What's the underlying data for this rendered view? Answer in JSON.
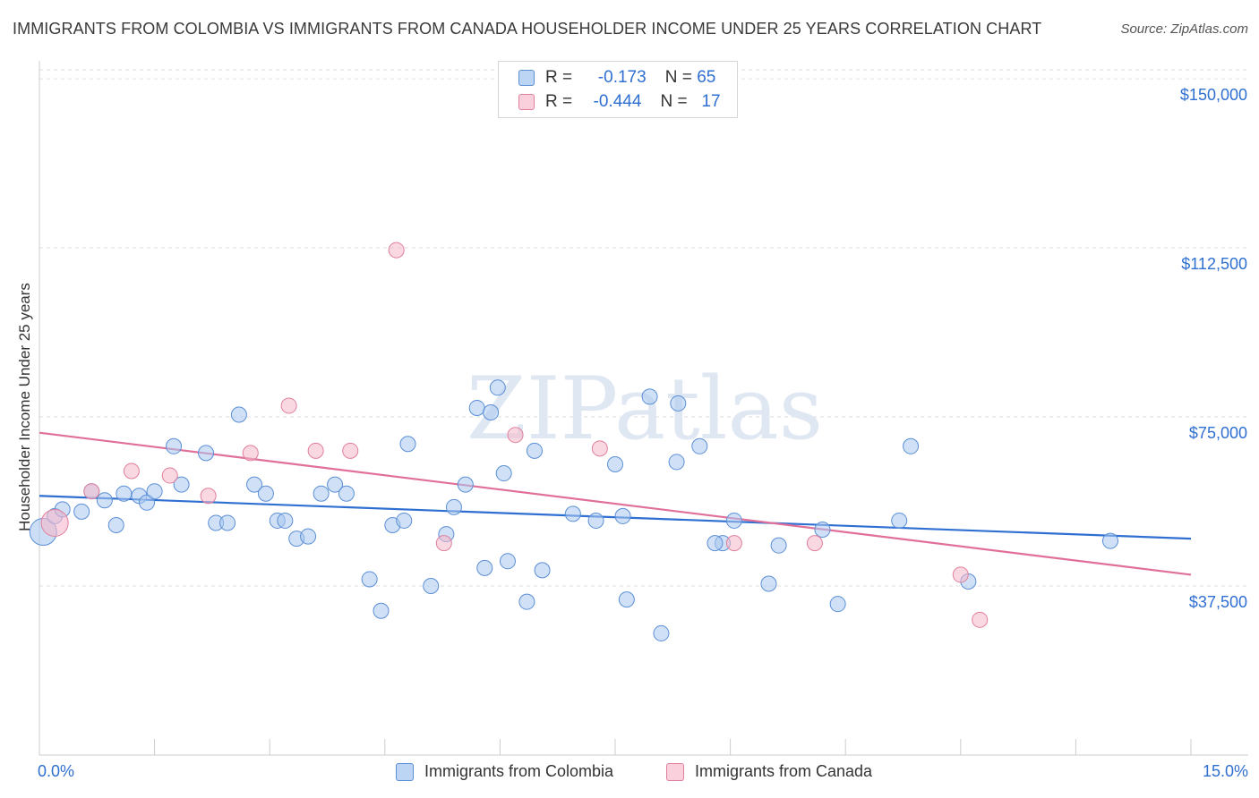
{
  "header": {
    "title": "IMMIGRANTS FROM COLOMBIA VS IMMIGRANTS FROM CANADA HOUSEHOLDER INCOME UNDER 25 YEARS CORRELATION CHART",
    "source": "Source: ZipAtlas.com"
  },
  "legend": {
    "colombia": {
      "r_label": "R =",
      "r_value": "-0.173",
      "n_label": "N =",
      "n_value": "65"
    },
    "canada": {
      "r_label": "R =",
      "r_value": "-0.444",
      "n_label": "N =",
      "n_value": "17"
    }
  },
  "bottom_legend": {
    "colombia": "Immigrants from Colombia",
    "canada": "Immigrants from Canada"
  },
  "watermark": "ZIPatlas",
  "colors": {
    "colombia_fill": "#a9c8f0",
    "colombia_stroke": "#5b8fd6",
    "colombia_line": "#2f6fd1",
    "canada_fill": "#f6b8cb",
    "canada_stroke": "#e0809c",
    "canada_line": "#e0709a",
    "axis_label": "#2f6fd1",
    "grid": "#dddddd"
  },
  "chart_data": {
    "type": "scatter",
    "title": "IMMIGRANTS FROM COLOMBIA VS IMMIGRANTS FROM CANADA HOUSEHOLDER INCOME UNDER 25 YEARS CORRELATION CHART",
    "xlabel": "",
    "ylabel": "Householder Income Under 25 years",
    "xlim": [
      0,
      15
    ],
    "ylim": [
      0,
      152000
    ],
    "x_tick_labels": [
      "0.0%",
      "15.0%"
    ],
    "y_ticks": [
      37500,
      75000,
      112500,
      150000
    ],
    "y_tick_labels": [
      "$37,500",
      "$75,000",
      "$112,500",
      "$150,000"
    ],
    "grid": "horizontal dashed",
    "series": [
      {
        "name": "Immigrants from Colombia",
        "R": -0.173,
        "N": 65,
        "trend": {
          "x": [
            0,
            15
          ],
          "y": [
            57500,
            48000
          ]
        },
        "points": [
          [
            0.05,
            49500
          ],
          [
            0.2,
            53000
          ],
          [
            0.3,
            54500
          ],
          [
            0.55,
            54000
          ],
          [
            0.68,
            58500
          ],
          [
            0.85,
            56500
          ],
          [
            1.0,
            51000
          ],
          [
            1.1,
            58000
          ],
          [
            1.3,
            57500
          ],
          [
            1.4,
            56000
          ],
          [
            1.5,
            58500
          ],
          [
            1.85,
            60000
          ],
          [
            1.75,
            68500
          ],
          [
            2.17,
            67000
          ],
          [
            2.3,
            51500
          ],
          [
            2.45,
            51500
          ],
          [
            2.6,
            75500
          ],
          [
            2.8,
            60000
          ],
          [
            2.95,
            58000
          ],
          [
            3.1,
            52000
          ],
          [
            3.2,
            52000
          ],
          [
            3.35,
            48000
          ],
          [
            3.5,
            48500
          ],
          [
            3.67,
            58000
          ],
          [
            3.85,
            60000
          ],
          [
            4.0,
            58000
          ],
          [
            4.3,
            39000
          ],
          [
            4.45,
            32000
          ],
          [
            4.6,
            51000
          ],
          [
            4.75,
            52000
          ],
          [
            4.8,
            69000
          ],
          [
            5.1,
            37500
          ],
          [
            5.3,
            49000
          ],
          [
            5.4,
            55000
          ],
          [
            5.55,
            60000
          ],
          [
            5.7,
            77000
          ],
          [
            5.8,
            41500
          ],
          [
            5.88,
            76000
          ],
          [
            5.97,
            81500
          ],
          [
            6.05,
            62500
          ],
          [
            6.1,
            43000
          ],
          [
            6.35,
            34000
          ],
          [
            6.45,
            67500
          ],
          [
            6.55,
            41000
          ],
          [
            6.95,
            53500
          ],
          [
            7.25,
            52000
          ],
          [
            7.5,
            64500
          ],
          [
            7.6,
            53000
          ],
          [
            7.65,
            34500
          ],
          [
            7.95,
            79500
          ],
          [
            8.1,
            27000
          ],
          [
            8.3,
            65000
          ],
          [
            8.32,
            78000
          ],
          [
            8.6,
            68500
          ],
          [
            8.9,
            47000
          ],
          [
            9.05,
            52000
          ],
          [
            9.5,
            38000
          ],
          [
            9.63,
            46500
          ],
          [
            10.2,
            50000
          ],
          [
            10.4,
            33500
          ],
          [
            11.2,
            52000
          ],
          [
            11.35,
            68500
          ],
          [
            12.1,
            38500
          ],
          [
            13.95,
            47500
          ],
          [
            8.8,
            47000
          ]
        ]
      },
      {
        "name": "Immigrants from Canada",
        "R": -0.444,
        "N": 17,
        "trend": {
          "x": [
            0,
            15
          ],
          "y": [
            71500,
            40000
          ]
        },
        "points": [
          [
            0.2,
            51500
          ],
          [
            0.68,
            58500
          ],
          [
            1.2,
            63000
          ],
          [
            1.7,
            62000
          ],
          [
            2.2,
            57500
          ],
          [
            2.75,
            67000
          ],
          [
            3.25,
            77500
          ],
          [
            3.6,
            67500
          ],
          [
            4.05,
            67500
          ],
          [
            4.65,
            112000
          ],
          [
            5.27,
            47000
          ],
          [
            6.2,
            71000
          ],
          [
            7.3,
            68000
          ],
          [
            9.05,
            47000
          ],
          [
            10.1,
            47000
          ],
          [
            12.0,
            40000
          ],
          [
            12.25,
            30000
          ]
        ]
      }
    ]
  }
}
